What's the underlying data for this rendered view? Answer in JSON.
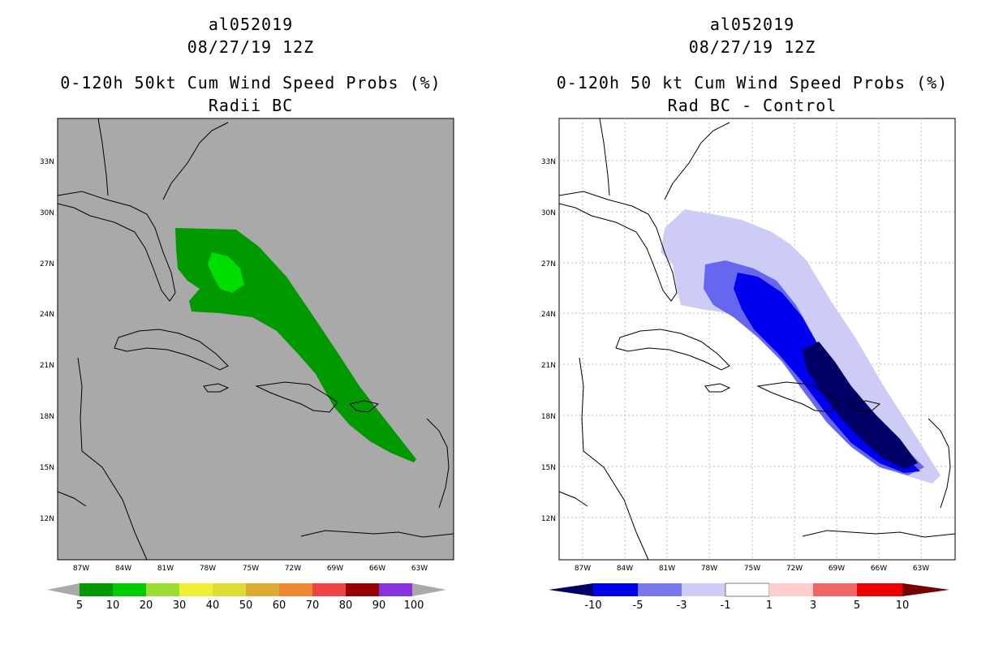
{
  "panels": [
    {
      "title_line1": "al052019",
      "title_line2": "08/27/19 12Z",
      "title_line3": "0-120h 50kt Cum Wind Speed Probs (%)",
      "title_line4": "Radii BC",
      "colorbar": {
        "labels": [
          "5",
          "10",
          "20",
          "30",
          "40",
          "50",
          "60",
          "70",
          "80",
          "90",
          "100"
        ],
        "colors": [
          "#009900",
          "#00cc00",
          "#99dd33",
          "#eeee33",
          "#dddd33",
          "#ddaa33",
          "#ee8833",
          "#ee4444",
          "#990000",
          "#660000",
          "#8833dd"
        ]
      }
    },
    {
      "title_line1": "al052019",
      "title_line2": "08/27/19 12Z",
      "title_line3": "0-120h 50 kt Cum Wind Speed Probs (%)",
      "title_line4": "Rad BC - Control",
      "colorbar": {
        "labels": [
          "-10",
          "-5",
          "-3",
          "-1",
          "1",
          "3",
          "5",
          "10"
        ],
        "colors": [
          "#000066",
          "#0000ee",
          "#7777ee",
          "#ccccf7",
          "#ffffff",
          "#ffcccc",
          "#ee6666",
          "#ee0000",
          "#770000"
        ]
      }
    }
  ],
  "lat_labels": [
    "33N",
    "30N",
    "27N",
    "24N",
    "21N",
    "18N",
    "15N",
    "12N"
  ],
  "lon_labels": [
    "87W",
    "84W",
    "81W",
    "78W",
    "75W",
    "72W",
    "69W",
    "66W",
    "63W"
  ],
  "colors": {
    "land_gray": "#a9a9a9",
    "green_dark": "#009900",
    "green_light": "#00dd00",
    "blue_darkest": "#000066",
    "blue_dark": "#0000ee",
    "blue_mid": "#6666ee",
    "blue_light": "#ccccf7"
  }
}
